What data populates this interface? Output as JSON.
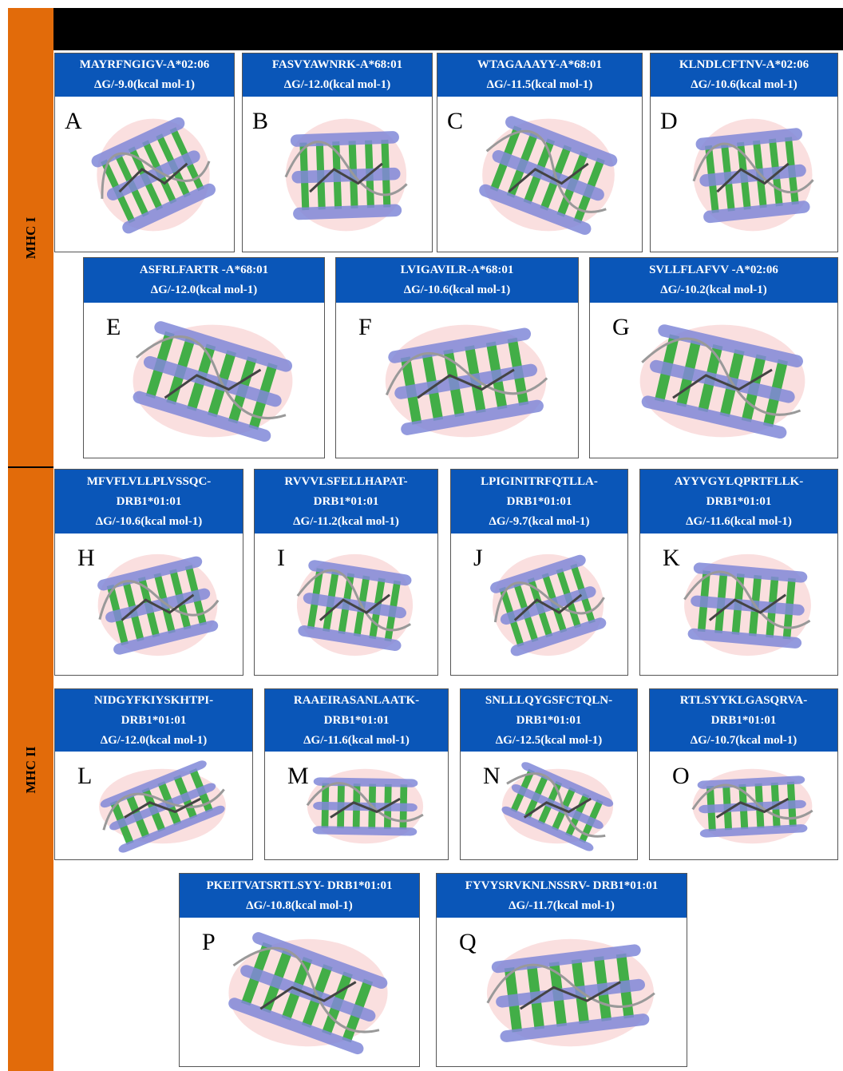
{
  "sections": [
    {
      "label": "MHC I"
    },
    {
      "label": "MHC II"
    }
  ],
  "panels": [
    {
      "letter": "A",
      "lines": [
        "MAYRFNGIGV-A*02:06",
        "ΔG/-9.0(kcal mol-1)"
      ]
    },
    {
      "letter": "B",
      "lines": [
        "FASVYAWNRK-A*68:01",
        "ΔG/-12.0(kcal mol-1)"
      ]
    },
    {
      "letter": "C",
      "lines": [
        "WTAGAAAYY-A*68:01",
        "ΔG/-11.5(kcal mol-1)"
      ]
    },
    {
      "letter": "D",
      "lines": [
        "KLNDLCFTNV-A*02:06",
        "ΔG/-10.6(kcal mol-1)"
      ]
    },
    {
      "letter": "E",
      "lines": [
        "ASFRLFARTR -A*68:01",
        "ΔG/-12.0(kcal mol-1)"
      ]
    },
    {
      "letter": "F",
      "lines": [
        "LVIGAVILR-A*68:01",
        "ΔG/-10.6(kcal mol-1)"
      ]
    },
    {
      "letter": "G",
      "lines": [
        "SVLLFLAFVV -A*02:06",
        "ΔG/-10.2(kcal mol-1)"
      ]
    },
    {
      "letter": "H",
      "lines": [
        "MFVFLVLLPLVSSQC-",
        "DRB1*01:01",
        "ΔG/-10.6(kcal mol-1)"
      ]
    },
    {
      "letter": "I",
      "lines": [
        "RVVVLSFELLHAPAT-",
        "DRB1*01:01",
        "ΔG/-11.2(kcal mol-1)"
      ]
    },
    {
      "letter": "J",
      "lines": [
        "LPIGINITRFQTLLA-",
        "DRB1*01:01",
        "ΔG/-9.7(kcal mol-1)"
      ]
    },
    {
      "letter": "K",
      "lines": [
        "AYYVGYLQPRTFLLK-",
        "DRB1*01:01",
        "ΔG/-11.6(kcal mol-1)"
      ]
    },
    {
      "letter": "L",
      "lines": [
        "NIDGYFKIYSKHTPI-",
        "DRB1*01:01",
        "ΔG/-12.0(kcal mol-1)"
      ]
    },
    {
      "letter": "M",
      "lines": [
        "RAAEIRASANLAATK-",
        "DRB1*01:01",
        "ΔG/-11.6(kcal mol-1)"
      ]
    },
    {
      "letter": "N",
      "lines": [
        "SNLLLQYGSFCTQLN-",
        "DRB1*01:01",
        "ΔG/-12.5(kcal mol-1)"
      ]
    },
    {
      "letter": "O",
      "lines": [
        "RTLSYYKLGASQRVA-",
        "DRB1*01:01",
        "ΔG/-10.7(kcal mol-1)"
      ]
    },
    {
      "letter": "P",
      "lines": [
        "PKEITVATSRTLSYY- DRB1*01:01",
        "ΔG/-10.8(kcal mol-1)"
      ]
    },
    {
      "letter": "Q",
      "lines": [
        "FYVYSRVKNLNSSRV- DRB1*01:01",
        "ΔG/-11.7(kcal mol-1)"
      ]
    }
  ]
}
